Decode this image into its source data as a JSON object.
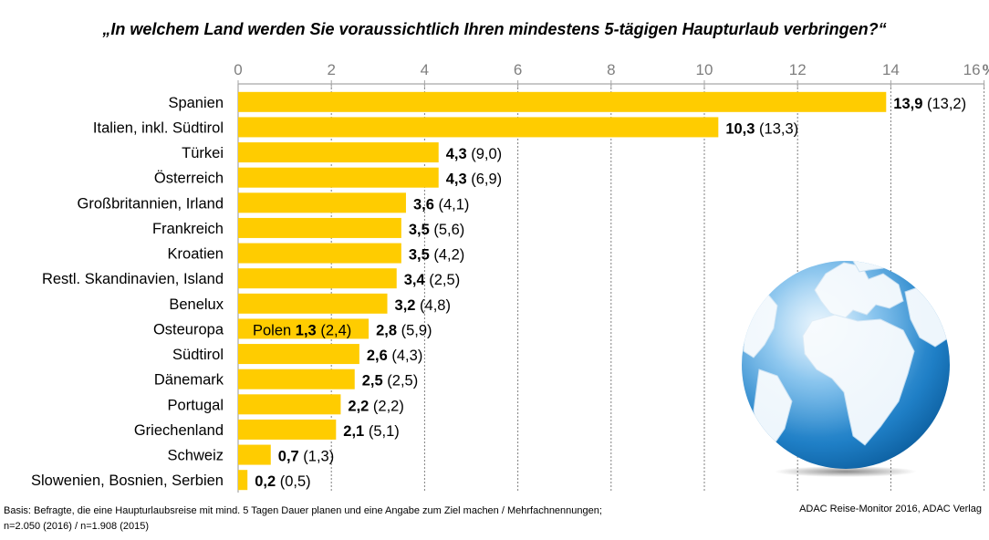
{
  "title": "„In welchem Land werden Sie voraussichtlich Ihren mindestens 5-tägigen Haupturlaub verbringen?“",
  "footnote": {
    "line1": "Basis: Befragte, die eine Haupturlaubsreise mit mind. 5 Tagen Dauer planen und eine Angabe zum Ziel machen / Mehrfachnennungen;",
    "line2": "n=2.050 (2016) / n=1.908 (2015)"
  },
  "source": "ADAC Reise-Monitor 2016, ADAC Verlag",
  "chart_data": {
    "type": "bar",
    "orientation": "horizontal",
    "title": "„In welchem Land werden Sie voraussichtlich Ihren mindestens 5-tägigen Haupturlaub verbringen?“",
    "xlabel": "%",
    "xlim": [
      0,
      16
    ],
    "xticks": [
      0,
      2,
      4,
      6,
      8,
      10,
      12,
      14,
      16
    ],
    "xtick_labels": [
      "0",
      "2",
      "4",
      "6",
      "8",
      "10",
      "12",
      "14",
      "16"
    ],
    "unit_label": "%",
    "grid": "vertical dashed",
    "bar_color": "#FFCC00",
    "categories": [
      "Spanien",
      "Italien, inkl. Südtirol",
      "Türkei",
      "Österreich",
      "Großbritannien, Irland",
      "Frankreich",
      "Kroatien",
      "Restl. Skandinavien, Island",
      "Benelux",
      "Osteuropa",
      "Südtirol",
      "Dänemark",
      "Portugal",
      "Griechenland",
      "Schweiz",
      "Slowenien, Bosnien, Serbien"
    ],
    "values": [
      13.9,
      10.3,
      4.3,
      4.3,
      3.6,
      3.5,
      3.5,
      3.4,
      3.2,
      2.8,
      2.6,
      2.5,
      2.2,
      2.1,
      0.7,
      0.2
    ],
    "value_labels": [
      "13,9",
      "10,3",
      "4,3",
      "4,3",
      "3,6",
      "3,5",
      "3,5",
      "3,4",
      "3,2",
      "2,8",
      "2,6",
      "2,5",
      "2,2",
      "2,1",
      "0,7",
      "0,2"
    ],
    "prev_labels": [
      "(13,2)",
      "(13,3)",
      "(9,0)",
      "(6,9)",
      "(4,1)",
      "(5,6)",
      "(4,2)",
      "(2,5)",
      "(4,8)",
      "(5,9)",
      "(4,3)",
      "(2,5)",
      "(2,2)",
      "(5,1)",
      "(1,3)",
      "(0,5)"
    ],
    "annotation": {
      "category": "Osteuropa",
      "label": "Polen",
      "value": 1.3,
      "value_label": "1,3",
      "prev_label": "(2,4)"
    }
  }
}
